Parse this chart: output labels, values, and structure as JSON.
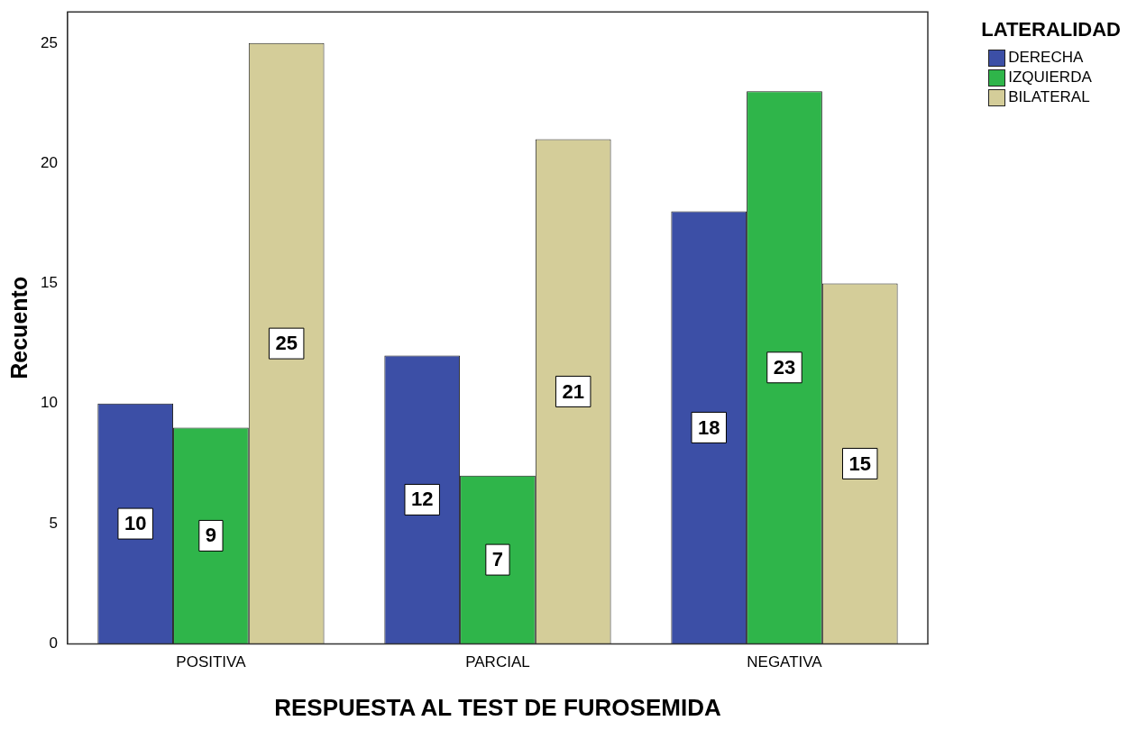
{
  "chart_data": {
    "type": "bar",
    "xlabel": "RESPUESTA AL TEST DE FUROSEMIDA",
    "ylabel": "Recuento",
    "legend_title": "LATERALIDAD",
    "categories": [
      "POSITIVA",
      "PARCIAL",
      "NEGATIVA"
    ],
    "series": [
      {
        "name": "DERECHA",
        "color": "#3c4fa6",
        "values": [
          10,
          12,
          18
        ]
      },
      {
        "name": "IZQUIERDA",
        "color": "#2fb54a",
        "values": [
          9,
          7,
          23
        ]
      },
      {
        "name": "BILATERAL",
        "color": "#d4cd99",
        "values": [
          25,
          21,
          15
        ]
      }
    ],
    "ylim": [
      0,
      26.3
    ],
    "yticks": [
      0,
      5,
      10,
      15,
      20,
      25
    ],
    "grid": false,
    "legend": "top right",
    "data_labels": true
  }
}
